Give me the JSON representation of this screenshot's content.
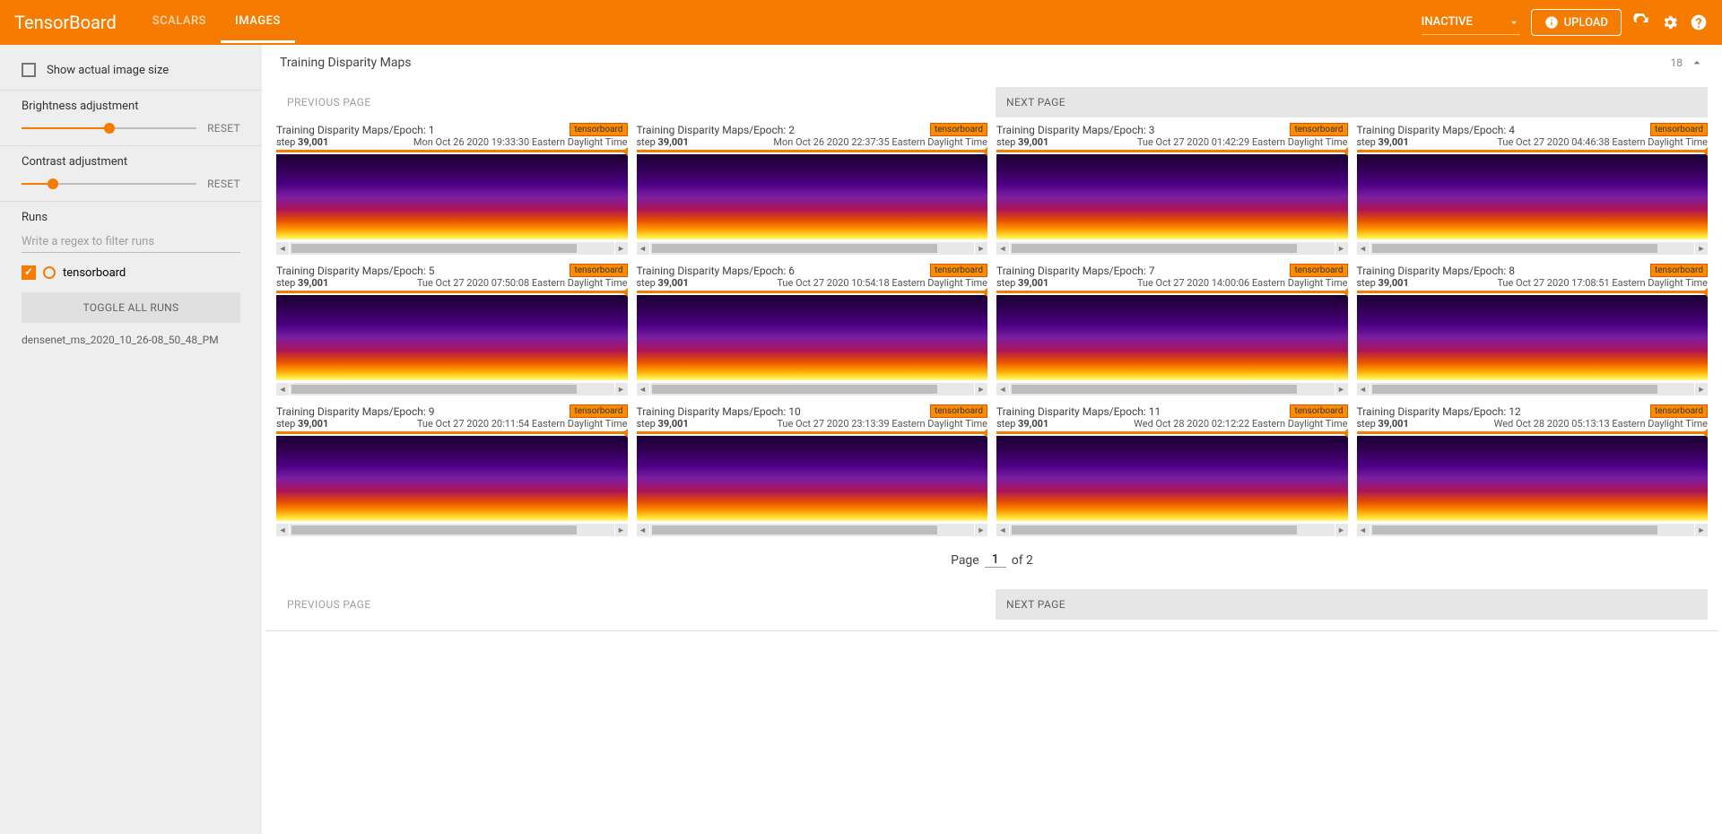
{
  "header": {
    "logo": "TensorBoard",
    "tabs": [
      {
        "label": "SCALARS"
      },
      {
        "label": "IMAGES"
      }
    ],
    "inactive": "INACTIVE",
    "upload": "UPLOAD"
  },
  "sidebar": {
    "show_actual": "Show actual image size",
    "brightness": {
      "label": "Brightness adjustment",
      "reset": "RESET",
      "value": 50
    },
    "contrast": {
      "label": "Contrast adjustment",
      "reset": "RESET",
      "value": 18
    },
    "runs_label": "Runs",
    "filter_placeholder": "Write a regex to filter runs",
    "run_item": "tensorboard",
    "toggle": "TOGGLE ALL RUNS",
    "run_dir": "densenet_ms_2020_10_26-08_50_48_PM"
  },
  "panel": {
    "title": "Training Disparity Maps",
    "count": "18",
    "prev": "PREVIOUS PAGE",
    "next": "NEXT PAGE",
    "page_label": "Page",
    "page_current": "1",
    "page_of": "of 2",
    "tag": "tensorboard",
    "step_label": "step",
    "step_val": "39,001",
    "cards": [
      {
        "title": "Training Disparity Maps/Epoch: 1",
        "ts": "Mon Oct 26 2020 19:33:30 Eastern Daylight Time"
      },
      {
        "title": "Training Disparity Maps/Epoch: 2",
        "ts": "Mon Oct 26 2020 22:37:35 Eastern Daylight Time"
      },
      {
        "title": "Training Disparity Maps/Epoch: 3",
        "ts": "Tue Oct 27 2020 01:42:29 Eastern Daylight Time"
      },
      {
        "title": "Training Disparity Maps/Epoch: 4",
        "ts": "Tue Oct 27 2020 04:46:38 Eastern Daylight Time"
      },
      {
        "title": "Training Disparity Maps/Epoch: 5",
        "ts": "Tue Oct 27 2020 07:50:08 Eastern Daylight Time"
      },
      {
        "title": "Training Disparity Maps/Epoch: 6",
        "ts": "Tue Oct 27 2020 10:54:18 Eastern Daylight Time"
      },
      {
        "title": "Training Disparity Maps/Epoch: 7",
        "ts": "Tue Oct 27 2020 14:00:06 Eastern Daylight Time"
      },
      {
        "title": "Training Disparity Maps/Epoch: 8",
        "ts": "Tue Oct 27 2020 17:08:51 Eastern Daylight Time"
      },
      {
        "title": "Training Disparity Maps/Epoch: 9",
        "ts": "Tue Oct 27 2020 20:11:54 Eastern Daylight Time"
      },
      {
        "title": "Training Disparity Maps/Epoch: 10",
        "ts": "Tue Oct 27 2020 23:13:39 Eastern Daylight Time"
      },
      {
        "title": "Training Disparity Maps/Epoch: 11",
        "ts": "Wed Oct 28 2020 02:12:22 Eastern Daylight Time"
      },
      {
        "title": "Training Disparity Maps/Epoch: 12",
        "ts": "Wed Oct 28 2020 05:13:13 Eastern Daylight Time"
      }
    ]
  },
  "colors": {
    "accent": "#f57c00"
  }
}
